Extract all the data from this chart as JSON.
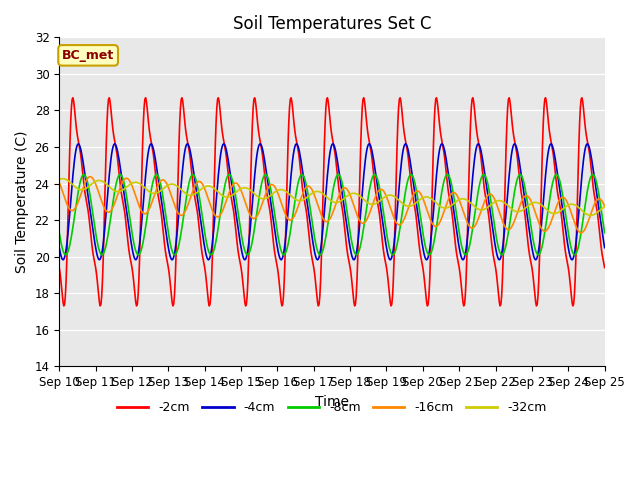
{
  "title": "Soil Temperatures Set C",
  "xlabel": "Time",
  "ylabel": "Soil Temperature (C)",
  "ylim": [
    14,
    32
  ],
  "yticks": [
    14,
    16,
    18,
    20,
    22,
    24,
    26,
    28,
    30,
    32
  ],
  "xtick_labels": [
    "Sep 10",
    "Sep 11",
    "Sep 12",
    "Sep 13",
    "Sep 14",
    "Sep 15",
    "Sep 16",
    "Sep 17",
    "Sep 18",
    "Sep 19",
    "Sep 20",
    "Sep 21",
    "Sep 22",
    "Sep 23",
    "Sep 24",
    "Sep 25"
  ],
  "annotation": "BC_met",
  "colors": {
    "-2cm": "#ff0000",
    "-4cm": "#0000cc",
    "-8cm": "#00cc00",
    "-16cm": "#ff8800",
    "-32cm": "#cccc00"
  },
  "legend_order": [
    "-2cm",
    "-4cm",
    "-8cm",
    "-16cm",
    "-32cm"
  ],
  "plot_bg_color": "#e8e8e8",
  "title_fontsize": 12,
  "axis_fontsize": 10,
  "tick_fontsize": 8.5,
  "linewidth": 1.2
}
